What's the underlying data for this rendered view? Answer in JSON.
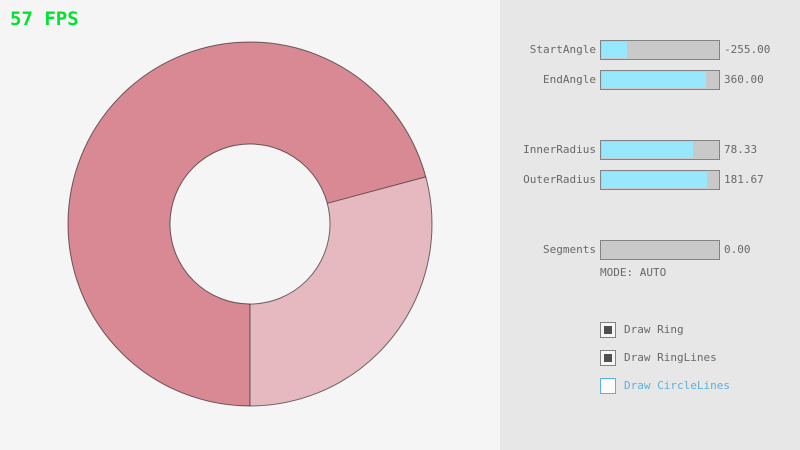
{
  "fps": "57 FPS",
  "colors": {
    "fps_green": "#00E430",
    "canvas_bg": "#F5F5F5",
    "panel_bg": "#E7E7E7",
    "ring_dark": "#D98994",
    "ring_light": "#E6B9C1",
    "ring_line": "rgba(0,0,0,0.55)",
    "slider_fill": "#97E8FF",
    "slider_track": "#C9C9C9",
    "border_gray": "#838383",
    "text_gray": "#686868",
    "accent_blue": "#5BB2D9"
  },
  "sliders": [
    {
      "id": "start-angle",
      "label": "StartAngle",
      "value": "-255.00",
      "fill_pct": 21.7
    },
    {
      "id": "end-angle",
      "label": "EndAngle",
      "value": "360.00",
      "fill_pct": 90.0
    },
    {
      "id": "inner-radius",
      "label": "InnerRadius",
      "value": "78.33",
      "fill_pct": 78.3
    },
    {
      "id": "outer-radius",
      "label": "OuterRadius",
      "value": "181.67",
      "fill_pct": 90.8
    },
    {
      "id": "segments",
      "label": "Segments",
      "value": "0.00",
      "fill_pct": 0
    }
  ],
  "mode_text": "MODE: AUTO",
  "checkboxes": [
    {
      "id": "draw-ring",
      "label": "Draw Ring",
      "checked": true
    },
    {
      "id": "draw-ringlines",
      "label": "Draw RingLines",
      "checked": true
    },
    {
      "id": "draw-circlelines",
      "label": "Draw CircleLines",
      "checked": false
    }
  ]
}
